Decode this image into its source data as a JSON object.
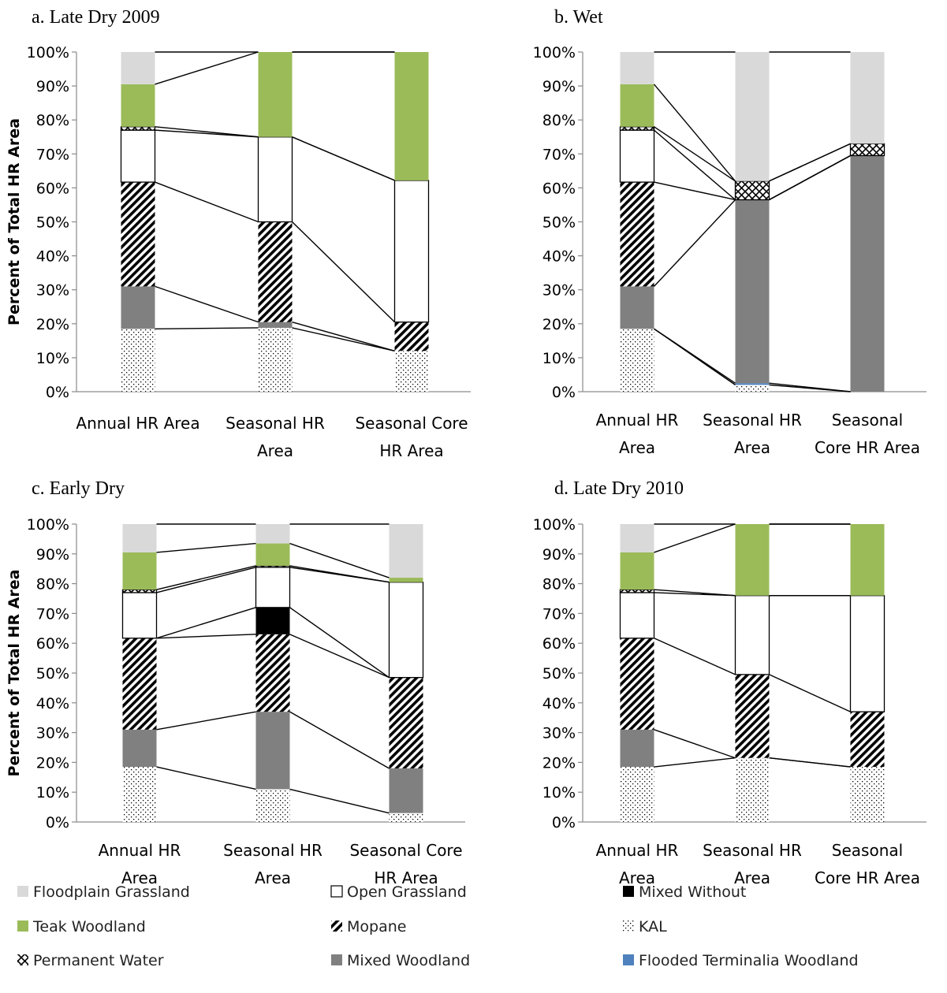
{
  "legend": [
    {
      "name": "Floodplain Grassland",
      "color": "#d9d9d9",
      "pattern": "solid"
    },
    {
      "name": "Open Grassland",
      "color": "#ffffff",
      "pattern": "solid"
    },
    {
      "name": "Mixed Without",
      "color": "#000000",
      "pattern": "solid"
    },
    {
      "name": "Teak Woodland",
      "color": "#9bbb59",
      "pattern": "solid"
    },
    {
      "name": "Mopane",
      "color": "#000000",
      "pattern": "diag"
    },
    {
      "name": "KAL",
      "color": "#000000",
      "pattern": "dots"
    },
    {
      "name": "Permanent Water",
      "color": "#000000",
      "pattern": "cross"
    },
    {
      "name": "Mixed Woodland",
      "color": "#808080",
      "pattern": "solid"
    },
    {
      "name": "Flooded Terminalia  Woodland",
      "color": "#4f81bd",
      "pattern": "solid"
    }
  ],
  "chart_data": [
    {
      "type": "bar",
      "stacked": true,
      "title": "a.   Late Dry 2009",
      "ylabel": "Percent of Total HR Area",
      "ylim": [
        0,
        100
      ],
      "yticks": [
        "0%",
        "10%",
        "20%",
        "30%",
        "40%",
        "50%",
        "60%",
        "70%",
        "80%",
        "90%",
        "100%"
      ],
      "categories": [
        [
          "Annual HR Area"
        ],
        [
          "Seasonal HR",
          "Area"
        ],
        [
          "Seasonal Core",
          "HR Area"
        ]
      ],
      "series": [
        {
          "name": "KAL",
          "values": [
            18.5,
            18.8,
            12
          ]
        },
        {
          "name": "Flooded Terminalia  Woodland",
          "values": [
            0,
            0,
            0
          ]
        },
        {
          "name": "Mixed Woodland",
          "values": [
            12.5,
            1.7,
            0
          ]
        },
        {
          "name": "Mopane",
          "values": [
            30.7,
            29.5,
            8.5
          ]
        },
        {
          "name": "Mixed Without",
          "values": [
            0,
            0,
            0
          ]
        },
        {
          "name": "Open Grassland",
          "values": [
            15.3,
            25,
            41.7
          ]
        },
        {
          "name": "Permanent Water",
          "values": [
            1,
            0,
            0
          ]
        },
        {
          "name": "Teak Woodland",
          "values": [
            12.5,
            25,
            37.8
          ]
        },
        {
          "name": "Floodplain Grassland",
          "values": [
            9.5,
            0,
            0
          ]
        }
      ]
    },
    {
      "type": "bar",
      "stacked": true,
      "title": "b.   Wet",
      "ylabel": "",
      "ylim": [
        0,
        100
      ],
      "yticks": [
        "0%",
        "10%",
        "20%",
        "30%",
        "40%",
        "50%",
        "60%",
        "70%",
        "80%",
        "90%",
        "100%"
      ],
      "categories": [
        [
          "Annual HR",
          "Area"
        ],
        [
          "Seasonal HR",
          "Area"
        ],
        [
          "Seasonal",
          "Core HR Area"
        ]
      ],
      "series": [
        {
          "name": "KAL",
          "values": [
            18.5,
            2,
            0
          ]
        },
        {
          "name": "Flooded Terminalia  Woodland",
          "values": [
            0,
            0.5,
            0
          ]
        },
        {
          "name": "Mixed Woodland",
          "values": [
            12.5,
            54,
            69.5
          ]
        },
        {
          "name": "Mopane",
          "values": [
            30.7,
            0,
            0
          ]
        },
        {
          "name": "Mixed Without",
          "values": [
            0,
            0,
            0
          ]
        },
        {
          "name": "Open Grassland",
          "values": [
            15.3,
            0,
            0
          ]
        },
        {
          "name": "Permanent Water",
          "values": [
            1,
            5.5,
            3.5
          ]
        },
        {
          "name": "Teak Woodland",
          "values": [
            12.5,
            0,
            0
          ]
        },
        {
          "name": "Floodplain Grassland",
          "values": [
            9.5,
            38,
            27
          ]
        }
      ]
    },
    {
      "type": "bar",
      "stacked": true,
      "title": "c.   Early Dry",
      "ylabel": "Percent of Total HR Area",
      "ylim": [
        0,
        100
      ],
      "yticks": [
        "0%",
        "10%",
        "20%",
        "30%",
        "40%",
        "50%",
        "60%",
        "70%",
        "80%",
        "90%",
        "100%"
      ],
      "categories": [
        [
          "Annual HR",
          "Area"
        ],
        [
          "Seasonal HR",
          "Area"
        ],
        [
          "Seasonal Core",
          "HR Area"
        ]
      ],
      "series": [
        {
          "name": "KAL",
          "values": [
            18.5,
            11,
            3
          ]
        },
        {
          "name": "Flooded Terminalia  Woodland",
          "values": [
            0,
            0,
            0
          ]
        },
        {
          "name": "Mixed Woodland",
          "values": [
            12.5,
            26,
            15
          ]
        },
        {
          "name": "Mopane",
          "values": [
            30.7,
            26,
            30.5
          ]
        },
        {
          "name": "Mixed Without",
          "values": [
            0,
            9,
            0
          ]
        },
        {
          "name": "Open Grassland",
          "values": [
            15.3,
            13.5,
            32
          ]
        },
        {
          "name": "Permanent Water",
          "values": [
            1,
            0.5,
            0
          ]
        },
        {
          "name": "Teak Woodland",
          "values": [
            12.5,
            7.5,
            1.5
          ]
        },
        {
          "name": "Floodplain Grassland",
          "values": [
            9.5,
            6.5,
            18
          ]
        }
      ]
    },
    {
      "type": "bar",
      "stacked": true,
      "title": "d.   Late Dry 2010",
      "ylabel": "",
      "ylim": [
        0,
        100
      ],
      "yticks": [
        "0%",
        "10%",
        "20%",
        "30%",
        "40%",
        "50%",
        "60%",
        "70%",
        "80%",
        "90%",
        "100%"
      ],
      "categories": [
        [
          "Annual HR",
          "Area"
        ],
        [
          "Seasonal HR",
          "Area"
        ],
        [
          "Seasonal",
          "Core HR Area"
        ]
      ],
      "series": [
        {
          "name": "KAL",
          "values": [
            18.5,
            21.5,
            18.5
          ]
        },
        {
          "name": "Flooded Terminalia  Woodland",
          "values": [
            0,
            0,
            0
          ]
        },
        {
          "name": "Mixed Woodland",
          "values": [
            12.5,
            0,
            0
          ]
        },
        {
          "name": "Mopane",
          "values": [
            30.7,
            28,
            18.5
          ]
        },
        {
          "name": "Mixed Without",
          "values": [
            0,
            0,
            0
          ]
        },
        {
          "name": "Open Grassland",
          "values": [
            15.3,
            26.5,
            39
          ]
        },
        {
          "name": "Permanent Water",
          "values": [
            1,
            0,
            0
          ]
        },
        {
          "name": "Teak Woodland",
          "values": [
            12.5,
            24,
            24
          ]
        },
        {
          "name": "Floodplain Grassland",
          "values": [
            9.5,
            0,
            0
          ]
        }
      ]
    }
  ]
}
